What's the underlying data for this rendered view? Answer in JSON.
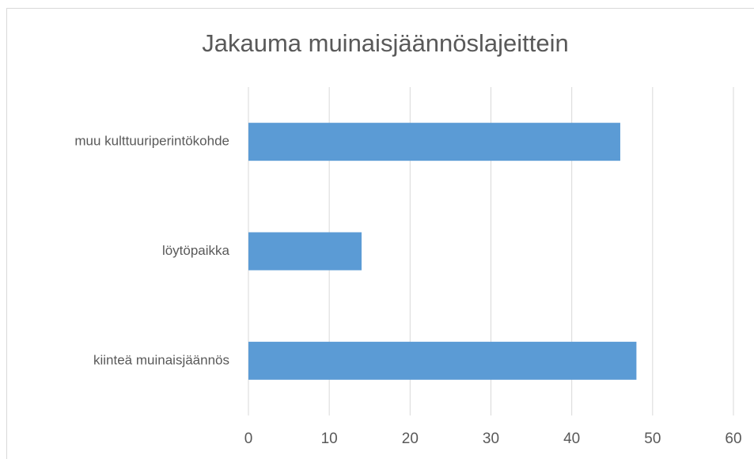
{
  "chart_data": {
    "type": "bar",
    "orientation": "horizontal",
    "title": "Jakauma muinaisjäännöslajeittein",
    "categories": [
      "muu kulttuuriperintökohde",
      "löytöpaikka",
      "kiinteä muinaisjäännös"
    ],
    "values": [
      46,
      14,
      48
    ],
    "color": "#5b9bd5",
    "xlim": [
      0,
      60
    ],
    "xticks": [
      0,
      10,
      20,
      30,
      40,
      50,
      60
    ],
    "grid": true
  }
}
